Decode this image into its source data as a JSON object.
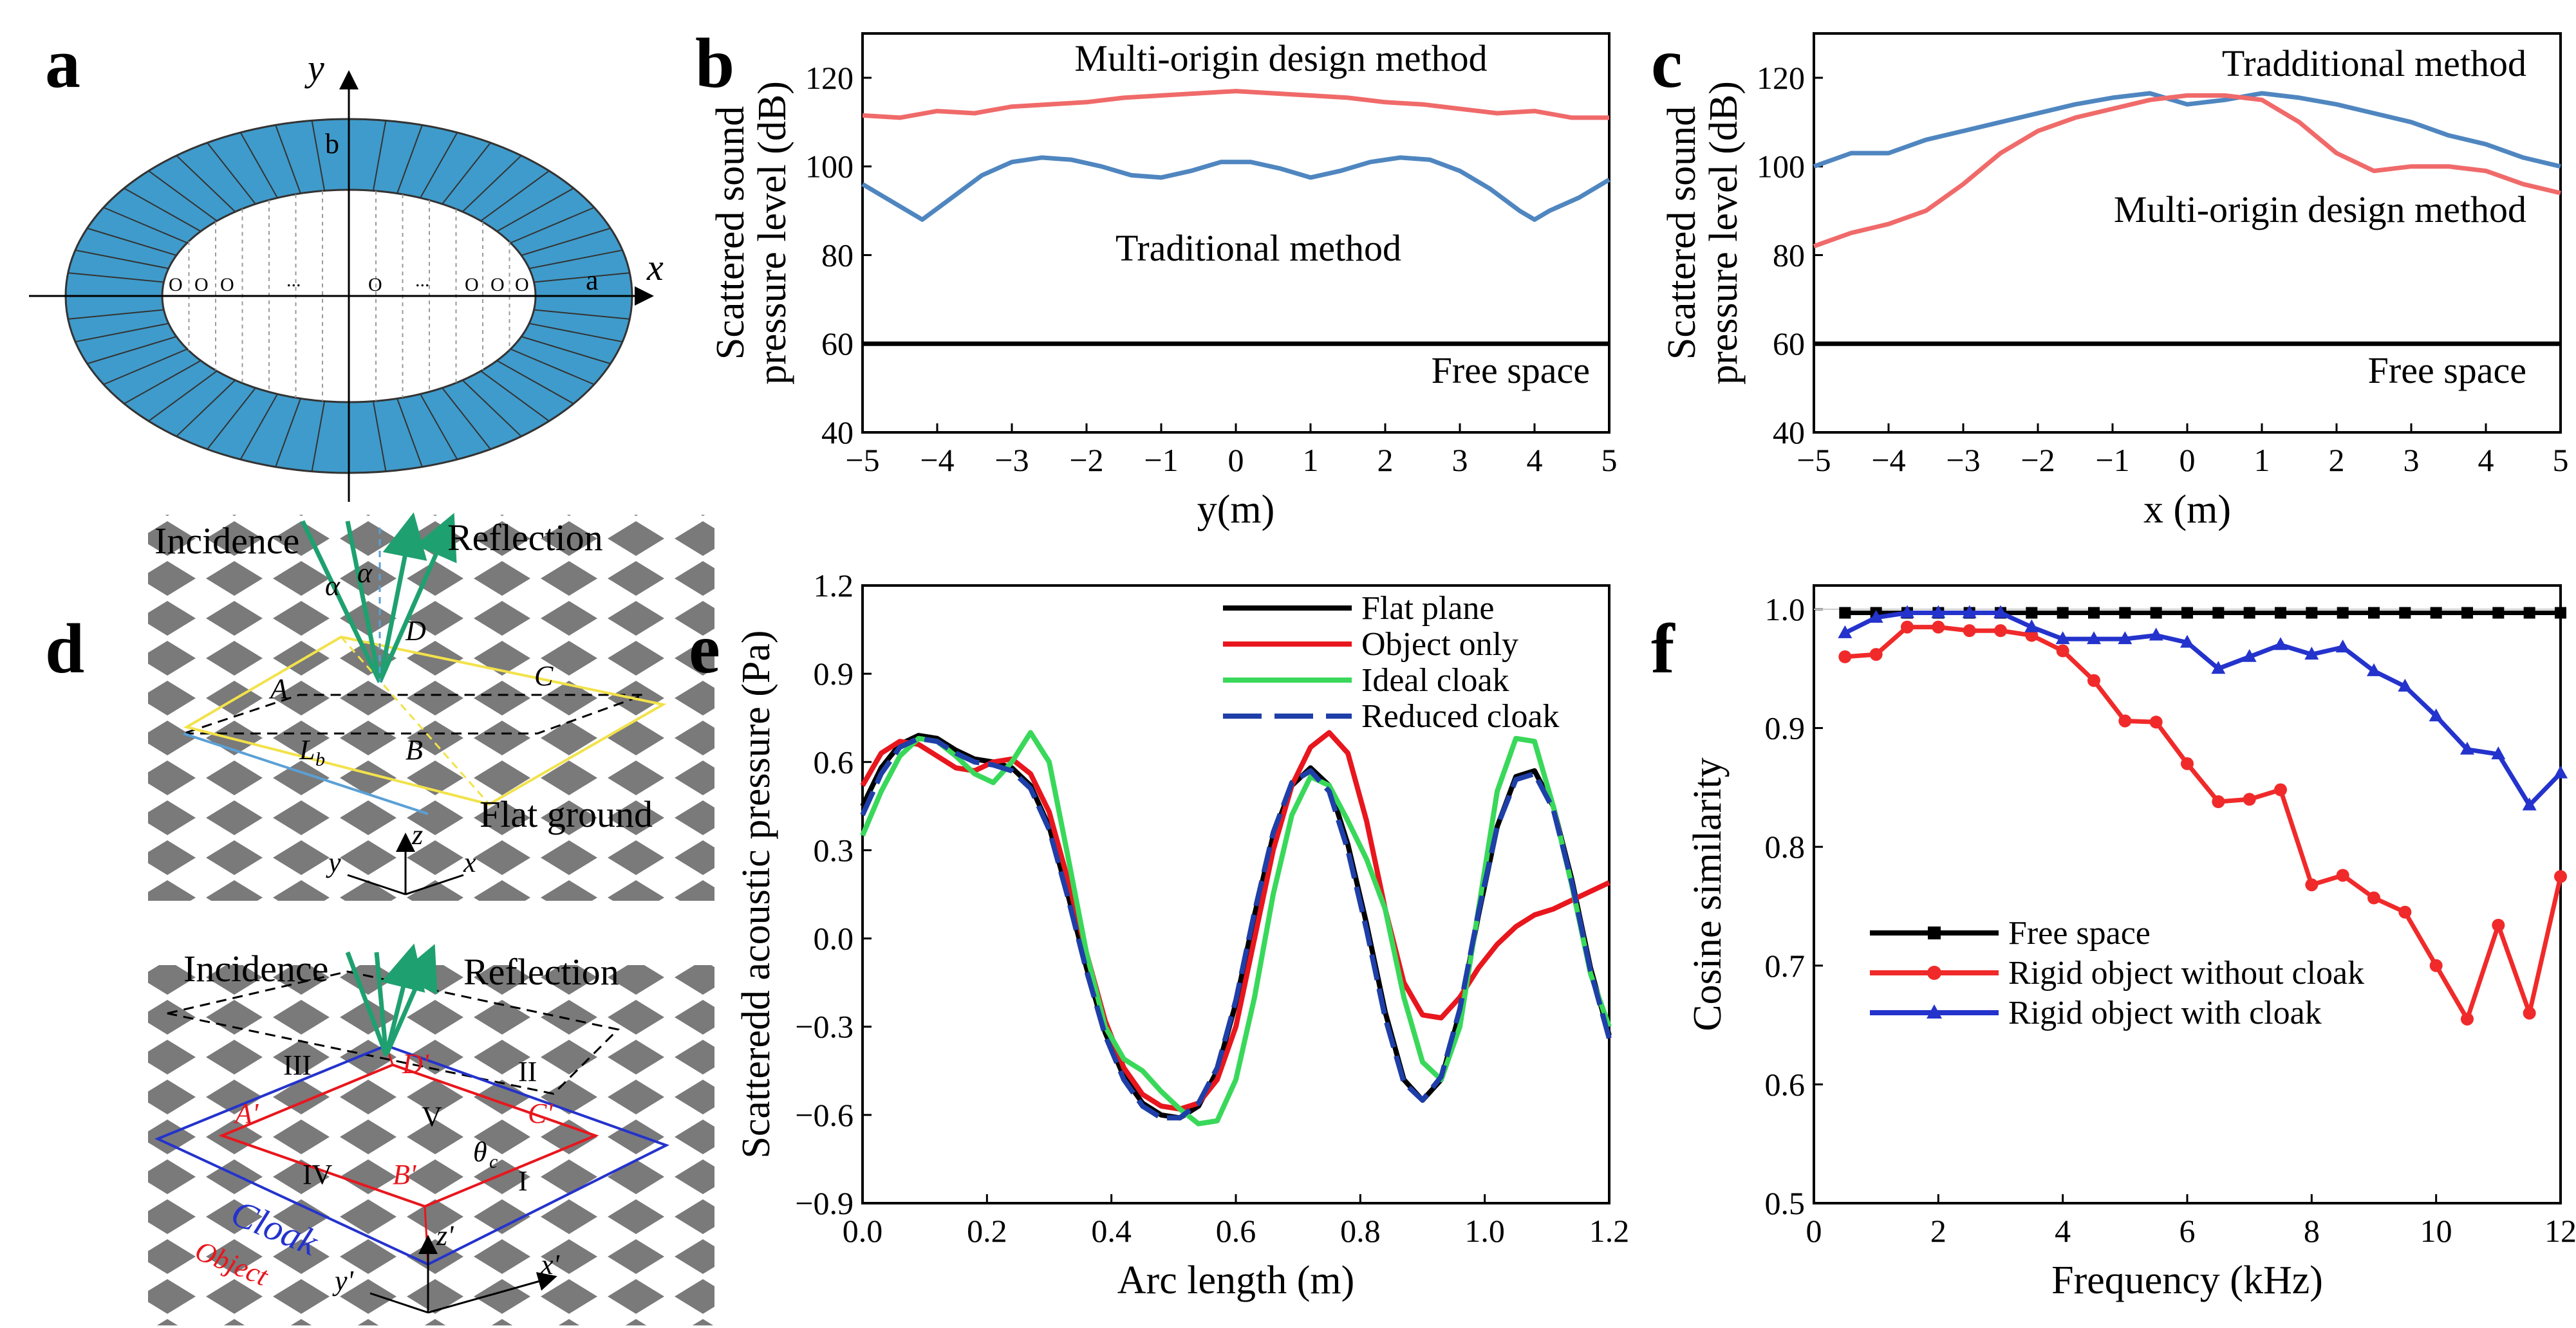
{
  "colors": {
    "red": "#f06a6a",
    "blue": "#4f86c0",
    "black": "#000000",
    "green": "#39d85a",
    "darkblue": "#1f3fa8",
    "shell": "#3f9bcb",
    "crvred": "#e8161d",
    "markred": "#f02a2a",
    "markblue": "#2433cc"
  },
  "panels": {
    "a": {
      "letter": "a",
      "y_axis": "y",
      "x_axis": "x",
      "b_label": "b",
      "a_label": "a",
      "origins_left": [
        "O",
        "O",
        "O",
        "..."
      ],
      "origins_right": [
        "...",
        "O",
        "O",
        "O"
      ],
      "center_origin": "O",
      "dots": "..."
    },
    "d": {
      "letter": "d",
      "incidence": "Incidence",
      "reflection": "Reflection",
      "alpha": "α",
      "pts": [
        "A",
        "B",
        "C",
        "D"
      ],
      "lb": "L",
      "lb_sub": "b",
      "flat_ground": "Flat ground",
      "axis_z": "z",
      "axis_y": "y",
      "axis_x": "x",
      "incidence2": "Incidence",
      "reflection2": "Reflection",
      "regions": [
        "I",
        "II",
        "III",
        "IV",
        "V"
      ],
      "pts2": [
        "A'",
        "B'",
        "C'",
        "D'"
      ],
      "theta": "θ",
      "theta_sub": "c",
      "cloak": "Cloak",
      "object": "Object",
      "axis_z2": "z'",
      "axis_y2": "y'",
      "axis_x2": "x'"
    }
  },
  "chart_data": [
    {
      "panel": "b",
      "type": "line",
      "title": "",
      "xlabel": "y(m)",
      "ylabel": [
        "Scattered sound",
        "pressure level (dB)"
      ],
      "xlim": [
        -5,
        5
      ],
      "ylim": [
        40,
        130
      ],
      "xticks": [
        -5,
        -4,
        -3,
        -2,
        -1,
        0,
        1,
        2,
        3,
        4,
        5
      ],
      "xtick_labels": [
        "−5",
        "−4",
        "−3",
        "−2",
        "−1",
        "0",
        "1",
        "2",
        "3",
        "4",
        "5"
      ],
      "yticks": [
        40,
        60,
        80,
        100,
        120
      ],
      "ytick_labels": [
        "40",
        "60",
        "80",
        "100",
        "120"
      ],
      "annotations": [
        "Multi-origin design method",
        "Traditional method",
        "Free space"
      ],
      "series": [
        {
          "name": "Multi-origin design method",
          "color": "#f06a6a",
          "x": [
            -5,
            -4.5,
            -4,
            -3.5,
            -3,
            -2.5,
            -2,
            -1.5,
            -1,
            -0.5,
            0,
            0.5,
            1,
            1.5,
            2,
            2.5,
            3,
            3.5,
            4,
            4.5,
            5
          ],
          "y": [
            111.5,
            111,
            112.5,
            112,
            113.5,
            114,
            114.5,
            115.5,
            116,
            116.5,
            117,
            116.5,
            116,
            115.5,
            114.5,
            114,
            113,
            112,
            112.5,
            111,
            111
          ]
        },
        {
          "name": "Traditional method",
          "color": "#4f86c0",
          "x": [
            -5,
            -4.6,
            -4.2,
            -3.8,
            -3.4,
            -3,
            -2.6,
            -2.2,
            -1.8,
            -1.4,
            -1,
            -0.6,
            -0.2,
            0.2,
            0.6,
            1,
            1.4,
            1.8,
            2.2,
            2.6,
            3,
            3.4,
            3.8,
            4,
            4.2,
            4.6,
            5
          ],
          "y": [
            96,
            92,
            88,
            93,
            98,
            101,
            102,
            101.5,
            100,
            98,
            97.5,
            99,
            101,
            101,
            99.5,
            97.5,
            99,
            101,
            102,
            101.5,
            99,
            95,
            90,
            88,
            90,
            93,
            97
          ]
        },
        {
          "name": "Free space",
          "color": "#000000",
          "x": [
            -5,
            5
          ],
          "y": [
            60,
            60
          ]
        }
      ]
    },
    {
      "panel": "c",
      "type": "line",
      "title": "",
      "xlabel": "x (m)",
      "ylabel": [
        "Scattered sound",
        "pressure level (dB)"
      ],
      "xlim": [
        -5,
        5
      ],
      "ylim": [
        40,
        130
      ],
      "xticks": [
        -5,
        -4,
        -3,
        -2,
        -1,
        0,
        1,
        2,
        3,
        4,
        5
      ],
      "xtick_labels": [
        "−5",
        "−4",
        "−3",
        "−2",
        "−1",
        "0",
        "1",
        "2",
        "3",
        "4",
        "5"
      ],
      "yticks": [
        40,
        60,
        80,
        100,
        120
      ],
      "ytick_labels": [
        "40",
        "60",
        "80",
        "100",
        "120"
      ],
      "annotations": [
        "Tradditional method",
        "Multi-origin design method",
        "Free space"
      ],
      "series": [
        {
          "name": "Tradditional method",
          "color": "#4f86c0",
          "x": [
            -5,
            -4.5,
            -4,
            -3.5,
            -3,
            -2.5,
            -2,
            -1.5,
            -1,
            -0.5,
            0,
            0.5,
            1,
            1.5,
            2,
            2.5,
            3,
            3.5,
            4,
            4.5,
            5
          ],
          "y": [
            100,
            103,
            103,
            106,
            108,
            110,
            112,
            114,
            115.5,
            116.5,
            114,
            115,
            116.5,
            115.5,
            114,
            112,
            110,
            107,
            105,
            102,
            100
          ]
        },
        {
          "name": "Multi-origin design method",
          "color": "#f06a6a",
          "x": [
            -5,
            -4.5,
            -4,
            -3.5,
            -3,
            -2.5,
            -2,
            -1.5,
            -1,
            -0.5,
            0,
            0.5,
            1,
            1.5,
            2,
            2.5,
            3,
            3.5,
            4,
            4.5,
            5
          ],
          "y": [
            82,
            85,
            87,
            90,
            96,
            103,
            108,
            111,
            113,
            115,
            116,
            116,
            115,
            110,
            103,
            99,
            100,
            100,
            99,
            96,
            94
          ]
        },
        {
          "name": "Free space",
          "color": "#000000",
          "x": [
            -5,
            5
          ],
          "y": [
            60,
            60
          ]
        }
      ]
    },
    {
      "panel": "e",
      "type": "line",
      "title": "",
      "xlabel": "Arc length (m)",
      "ylabel": [
        "Scatteredd acoustic pressure (Pa)"
      ],
      "xlim": [
        0,
        1.2
      ],
      "ylim": [
        -0.9,
        1.2
      ],
      "xticks": [
        0,
        0.2,
        0.4,
        0.6,
        0.8,
        1.0,
        1.2
      ],
      "xtick_labels": [
        "0.0",
        "0.2",
        "0.4",
        "0.6",
        "0.8",
        "1.0",
        "1.2"
      ],
      "yticks": [
        -0.9,
        -0.6,
        -0.3,
        0,
        0.3,
        0.6,
        0.9,
        1.2
      ],
      "ytick_labels": [
        "−0.9",
        "−0.6",
        "−0.3",
        "0.0",
        "0.3",
        "0.6",
        "0.9",
        "1.2"
      ],
      "legend": [
        "Flat plane",
        "Object only",
        "Ideal cloak",
        "Reduced cloak"
      ],
      "series": [
        {
          "name": "Flat plane",
          "color": "#000000",
          "x": [
            0,
            0.03,
            0.06,
            0.09,
            0.12,
            0.15,
            0.18,
            0.21,
            0.24,
            0.27,
            0.3,
            0.33,
            0.36,
            0.39,
            0.42,
            0.45,
            0.48,
            0.51,
            0.54,
            0.57,
            0.6,
            0.63,
            0.66,
            0.69,
            0.72,
            0.75,
            0.78,
            0.81,
            0.84,
            0.87,
            0.9,
            0.93,
            0.96,
            0.99,
            1.02,
            1.05,
            1.08,
            1.11,
            1.14,
            1.17,
            1.2
          ],
          "y": [
            0.45,
            0.58,
            0.66,
            0.69,
            0.68,
            0.64,
            0.61,
            0.6,
            0.58,
            0.52,
            0.38,
            0.15,
            -0.1,
            -0.32,
            -0.47,
            -0.56,
            -0.6,
            -0.61,
            -0.57,
            -0.45,
            -0.22,
            0.08,
            0.35,
            0.52,
            0.58,
            0.52,
            0.32,
            0.05,
            -0.25,
            -0.48,
            -0.55,
            -0.48,
            -0.25,
            0.08,
            0.38,
            0.55,
            0.57,
            0.45,
            0.2,
            -0.1,
            -0.33
          ]
        },
        {
          "name": "Object only",
          "color": "#e8161d",
          "x": [
            0,
            0.03,
            0.06,
            0.09,
            0.12,
            0.15,
            0.18,
            0.21,
            0.24,
            0.27,
            0.3,
            0.33,
            0.36,
            0.39,
            0.42,
            0.45,
            0.48,
            0.51,
            0.54,
            0.57,
            0.6,
            0.63,
            0.66,
            0.69,
            0.72,
            0.75,
            0.78,
            0.81,
            0.84,
            0.87,
            0.9,
            0.93,
            0.96,
            0.99,
            1.02,
            1.05,
            1.08,
            1.11,
            1.14,
            1.17,
            1.2
          ],
          "y": [
            0.52,
            0.63,
            0.67,
            0.66,
            0.62,
            0.58,
            0.57,
            0.6,
            0.61,
            0.56,
            0.43,
            0.2,
            -0.05,
            -0.28,
            -0.44,
            -0.53,
            -0.57,
            -0.58,
            -0.56,
            -0.48,
            -0.3,
            0.0,
            0.3,
            0.52,
            0.65,
            0.7,
            0.63,
            0.4,
            0.1,
            -0.15,
            -0.26,
            -0.27,
            -0.2,
            -0.1,
            -0.02,
            0.04,
            0.08,
            0.1,
            0.13,
            0.16,
            0.19
          ]
        },
        {
          "name": "Ideal cloak",
          "color": "#39d85a",
          "x": [
            0,
            0.03,
            0.06,
            0.09,
            0.12,
            0.15,
            0.18,
            0.21,
            0.24,
            0.27,
            0.3,
            0.33,
            0.36,
            0.39,
            0.42,
            0.45,
            0.48,
            0.51,
            0.54,
            0.57,
            0.6,
            0.63,
            0.66,
            0.69,
            0.72,
            0.75,
            0.78,
            0.81,
            0.84,
            0.87,
            0.9,
            0.93,
            0.96,
            0.99,
            1.02,
            1.05,
            1.08,
            1.11,
            1.14,
            1.17,
            1.2
          ],
          "y": [
            0.35,
            0.5,
            0.62,
            0.68,
            0.67,
            0.62,
            0.56,
            0.53,
            0.6,
            0.7,
            0.6,
            0.28,
            -0.05,
            -0.3,
            -0.41,
            -0.45,
            -0.52,
            -0.58,
            -0.63,
            -0.62,
            -0.48,
            -0.2,
            0.15,
            0.42,
            0.55,
            0.52,
            0.4,
            0.27,
            0.1,
            -0.2,
            -0.42,
            -0.48,
            -0.3,
            0.1,
            0.5,
            0.68,
            0.67,
            0.45,
            0.18,
            -0.12,
            -0.3
          ]
        },
        {
          "name": "Reduced cloak",
          "color": "#1f3fa8",
          "dash": true,
          "x": [
            0,
            0.03,
            0.06,
            0.09,
            0.12,
            0.15,
            0.18,
            0.21,
            0.24,
            0.27,
            0.3,
            0.33,
            0.36,
            0.39,
            0.42,
            0.45,
            0.48,
            0.51,
            0.54,
            0.57,
            0.6,
            0.63,
            0.66,
            0.69,
            0.72,
            0.75,
            0.78,
            0.81,
            0.84,
            0.87,
            0.9,
            0.93,
            0.96,
            0.99,
            1.02,
            1.05,
            1.08,
            1.11,
            1.14,
            1.17,
            1.2
          ],
          "y": [
            0.42,
            0.56,
            0.65,
            0.68,
            0.67,
            0.63,
            0.6,
            0.59,
            0.57,
            0.51,
            0.37,
            0.14,
            -0.11,
            -0.33,
            -0.48,
            -0.57,
            -0.61,
            -0.61,
            -0.56,
            -0.44,
            -0.21,
            0.09,
            0.36,
            0.53,
            0.57,
            0.5,
            0.3,
            0.03,
            -0.27,
            -0.49,
            -0.55,
            -0.47,
            -0.24,
            0.09,
            0.38,
            0.54,
            0.56,
            0.44,
            0.19,
            -0.11,
            -0.34
          ]
        }
      ]
    },
    {
      "panel": "f",
      "type": "line",
      "title": "",
      "xlabel": "Frequency (kHz)",
      "ylabel": [
        "Cosine similarity"
      ],
      "xlim": [
        0,
        12
      ],
      "ylim": [
        0.5,
        1.02
      ],
      "xticks": [
        0,
        2,
        4,
        6,
        8,
        10,
        12
      ],
      "xtick_labels": [
        "0",
        "2",
        "4",
        "6",
        "8",
        "10",
        "12"
      ],
      "yticks": [
        0.5,
        0.6,
        0.7,
        0.8,
        0.9,
        1.0
      ],
      "ytick_labels": [
        "0.5",
        "0.6",
        "0.7",
        "0.8",
        "0.9",
        "1.0"
      ],
      "legend": [
        "Free space",
        "Rigid object without cloak",
        "Rigid object with cloak"
      ],
      "series": [
        {
          "name": "Free space",
          "color": "#000000",
          "marker": "square",
          "x": [
            0.5,
            1,
            1.5,
            2,
            2.5,
            3,
            3.5,
            4,
            4.5,
            5,
            5.5,
            6,
            6.5,
            7,
            7.5,
            8,
            8.5,
            9,
            9.5,
            10,
            10.5,
            11,
            11.5,
            12
          ],
          "y": [
            0.997,
            0.997,
            0.997,
            0.997,
            0.997,
            0.997,
            0.997,
            0.997,
            0.997,
            0.997,
            0.997,
            0.997,
            0.997,
            0.997,
            0.997,
            0.997,
            0.997,
            0.997,
            0.997,
            0.997,
            0.997,
            0.997,
            0.997,
            0.997
          ]
        },
        {
          "name": "Rigid object without cloak",
          "color": "#f02a2a",
          "marker": "circle",
          "x": [
            0.5,
            1,
            1.5,
            2,
            2.5,
            3,
            3.5,
            4,
            4.5,
            5,
            5.5,
            6,
            6.5,
            7,
            7.5,
            8,
            8.5,
            9,
            9.5,
            10,
            10.5,
            11,
            11.5,
            12
          ],
          "y": [
            0.96,
            0.962,
            0.985,
            0.985,
            0.982,
            0.982,
            0.978,
            0.965,
            0.94,
            0.906,
            0.905,
            0.87,
            0.838,
            0.84,
            0.848,
            0.768,
            0.776,
            0.757,
            0.745,
            0.7,
            0.655,
            0.734,
            0.66,
            0.775
          ]
        },
        {
          "name": "Rigid object with cloak",
          "color": "#2433cc",
          "marker": "triangle",
          "x": [
            0.5,
            1,
            1.5,
            2,
            2.5,
            3,
            3.5,
            4,
            4.5,
            5,
            5.5,
            6,
            6.5,
            7,
            7.5,
            8,
            8.5,
            9,
            9.5,
            10,
            10.5,
            11,
            11.5,
            12
          ],
          "y": [
            0.98,
            0.993,
            0.997,
            0.997,
            0.997,
            0.997,
            0.985,
            0.975,
            0.975,
            0.975,
            0.978,
            0.972,
            0.95,
            0.96,
            0.97,
            0.962,
            0.968,
            0.948,
            0.935,
            0.91,
            0.882,
            0.878,
            0.835,
            0.862
          ]
        }
      ]
    }
  ]
}
